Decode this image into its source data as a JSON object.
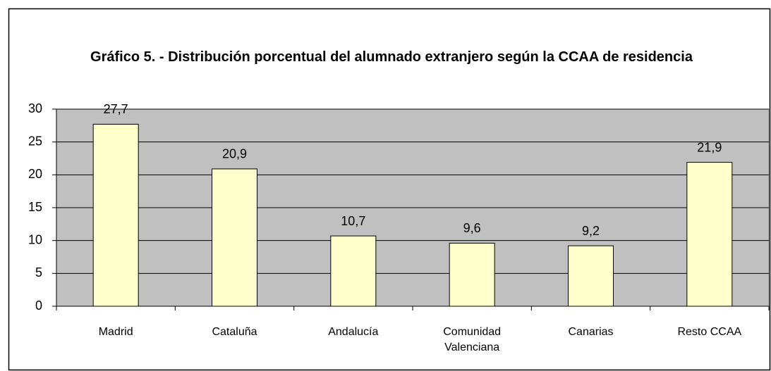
{
  "chart_data": {
    "type": "bar",
    "title": "Gráfico 5. - Distribución porcentual del alumnado extranjero según la CCAA de residencia",
    "categories": [
      "Madrid",
      "Cataluña",
      "Andalucía",
      "Comunidad Valenciana",
      "Canarias",
      "Resto CCAA"
    ],
    "values": [
      27.7,
      20.9,
      10.7,
      9.6,
      9.2,
      21.9
    ],
    "value_labels": [
      "27,7",
      "20,9",
      "10,7",
      "9,6",
      "9,2",
      "21,9"
    ],
    "color": "#ffffcc",
    "ylim": [
      0,
      30
    ],
    "yticks": [
      0,
      5,
      10,
      15,
      20,
      25,
      30
    ],
    "grid": true
  }
}
